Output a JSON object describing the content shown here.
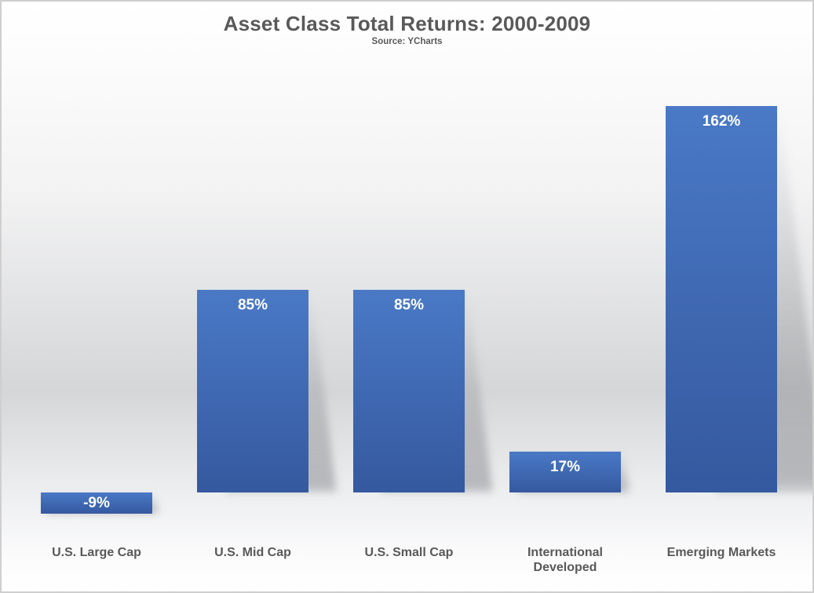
{
  "chart": {
    "title": "Asset Class Total Returns: 2000-2009",
    "subtitle": "Source: YCharts"
  },
  "chart_data": {
    "type": "bar",
    "title": "Asset Class Total Returns: 2000-2009",
    "subtitle": "Source: YCharts",
    "categories": [
      "U.S. Large Cap",
      "U.S. Mid Cap",
      "U.S. Small Cap",
      "International Developed",
      "Emerging Markets"
    ],
    "values": [
      -9,
      85,
      85,
      17,
      162
    ],
    "value_labels": [
      "-9%",
      "85%",
      "85%",
      "17%",
      "162%"
    ],
    "tick_labels": [
      "U.S. Large Cap",
      "U.S. Mid Cap",
      "U.S. Small Cap",
      "International\nDeveloped",
      "Emerging Markets"
    ],
    "unit": "%",
    "ylim": [
      -20,
      180
    ],
    "grid": false,
    "legend": null,
    "xlabel": "",
    "ylabel": "",
    "colors": {
      "bar_top": "#4A79C6",
      "bar_bottom": "#35599F",
      "value_label": "#FFFFFF",
      "text": "#595959",
      "shadow": "#9A9CA0"
    }
  }
}
